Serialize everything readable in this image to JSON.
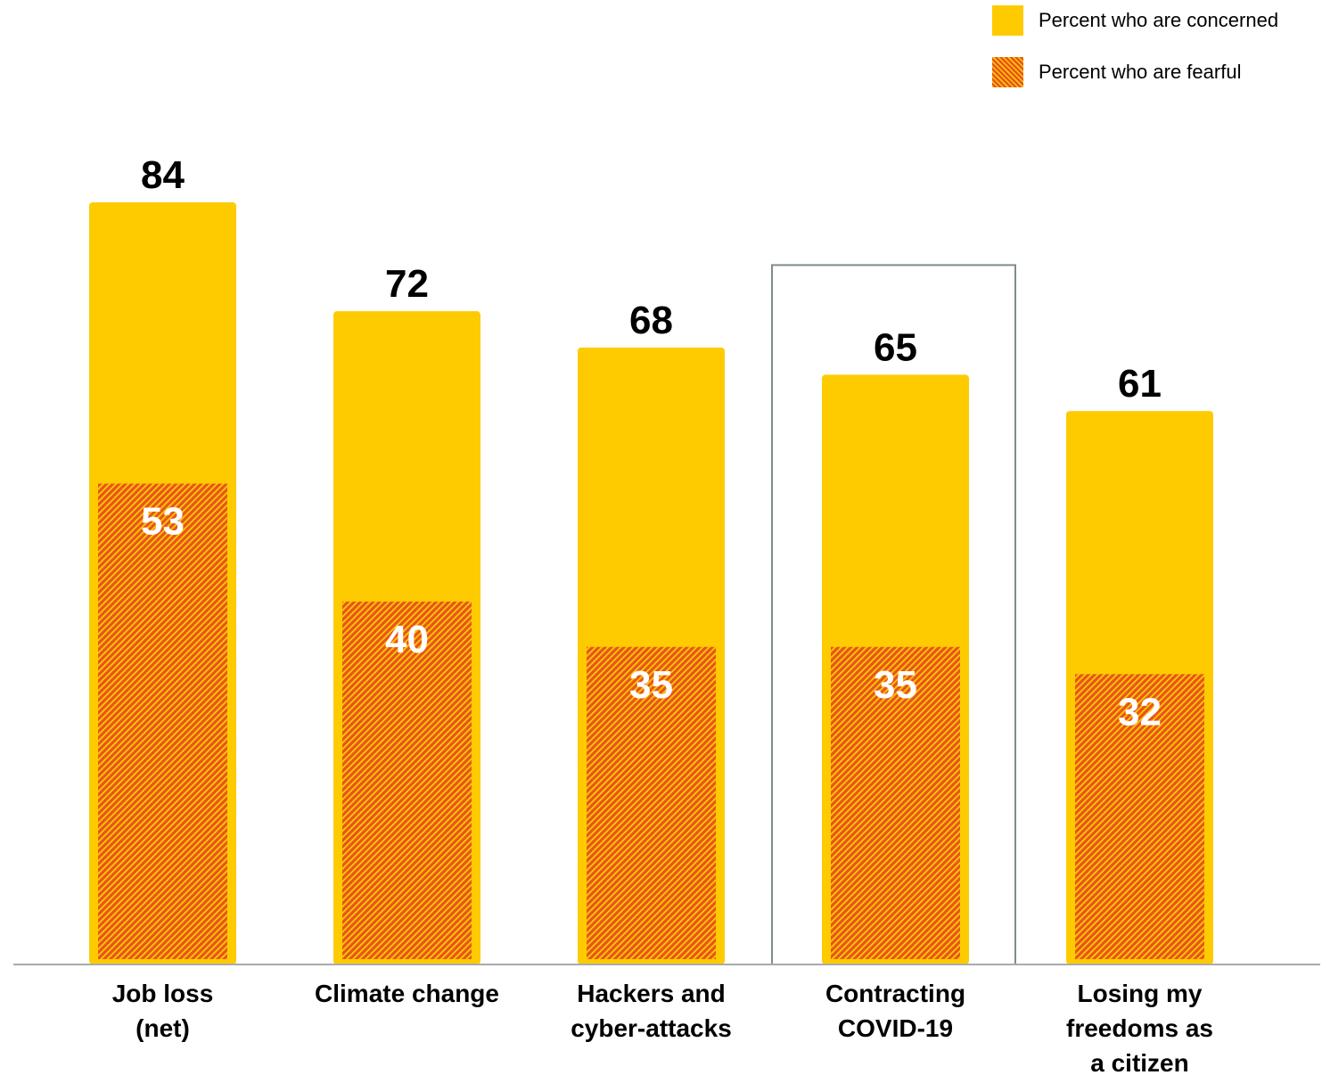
{
  "legend": {
    "concerned_label": "Percent who are concerned",
    "fearful_label": "Percent who are fearful"
  },
  "colors": {
    "concerned": "#FECB00",
    "fearful": "#E8541E",
    "highlight_border": "#7f8c8d",
    "baseline": "#aaaaaa"
  },
  "chart_data": {
    "type": "bar",
    "categories": [
      [
        "Job loss",
        "(net)"
      ],
      [
        "Climate change"
      ],
      [
        "Hackers and",
        "cyber-attacks"
      ],
      [
        "Contracting",
        "COVID-19"
      ],
      [
        "Losing my",
        "freedoms as",
        "a citizen"
      ]
    ],
    "series": [
      {
        "name": "Percent who are concerned",
        "values": [
          84,
          72,
          68,
          65,
          61
        ]
      },
      {
        "name": "Percent who are fearful",
        "values": [
          53,
          40,
          35,
          35,
          32
        ]
      }
    ],
    "highlighted_category_index": 3,
    "ylim": [
      0,
      84
    ],
    "grid": false,
    "legend_position": "top-right",
    "title": "",
    "xlabel": "",
    "ylabel": ""
  }
}
